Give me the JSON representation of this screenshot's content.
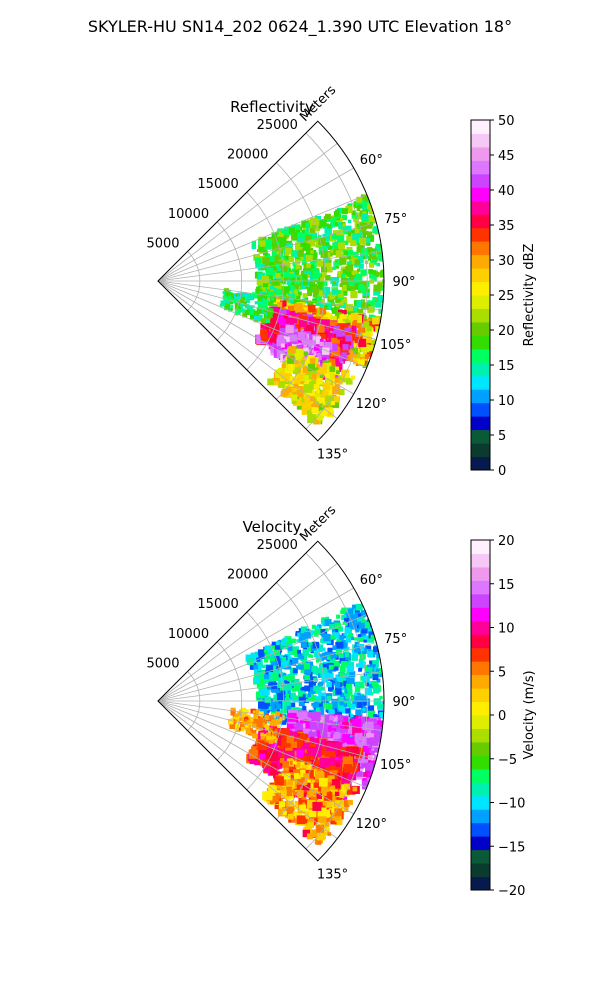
{
  "figure": {
    "title": "SKYLER-HU  SN14_202  0624_1.390 UTC Elevation 18°"
  },
  "chart_data": [
    {
      "type": "heatmap",
      "subtype": "polar-sector radar PPI",
      "title": "Reflectivity",
      "range_label": "Meters",
      "range_ticks": [
        5000,
        10000,
        15000,
        20000,
        25000
      ],
      "range_max": 27000,
      "azimuth_ticks": [
        "60°",
        "75°",
        "90°",
        "105°",
        "120°",
        "135°"
      ],
      "azimuth_range_deg": [
        45,
        135
      ],
      "colorbar": {
        "label": "Reflectivity dBZ",
        "min": 0,
        "max": 50,
        "ticks": [
          0,
          5,
          10,
          15,
          20,
          25,
          30,
          35,
          40,
          45,
          50
        ],
        "colors": [
          "#061a4d",
          "#0b3b2e",
          "#0a5a38",
          "#0000c8",
          "#0050ff",
          "#00a0ff",
          "#00e5ff",
          "#00f0b0",
          "#00ff60",
          "#33dd00",
          "#66cc00",
          "#aadd00",
          "#ddee00",
          "#ffee00",
          "#ffd000",
          "#ffaa00",
          "#ff7700",
          "#ff3300",
          "#ff0044",
          "#ff0099",
          "#ff00ff",
          "#cc44ff",
          "#dd77ff",
          "#ee99ee",
          "#f5c8f5",
          "#fff0ff"
        ]
      }
    },
    {
      "type": "heatmap",
      "subtype": "polar-sector radar PPI",
      "title": "Velocity",
      "range_label": "Meters",
      "range_ticks": [
        5000,
        10000,
        15000,
        20000,
        25000
      ],
      "range_max": 27000,
      "azimuth_ticks": [
        "60°",
        "75°",
        "90°",
        "105°",
        "120°",
        "135°"
      ],
      "azimuth_range_deg": [
        45,
        135
      ],
      "colorbar": {
        "label": "Velocity (m/s)",
        "min": -20,
        "max": 20,
        "ticks": [
          -20,
          -15,
          -10,
          -5,
          0,
          5,
          10,
          15,
          20
        ],
        "colors": [
          "#061a4d",
          "#0b3b2e",
          "#0a5a38",
          "#0000c8",
          "#0050ff",
          "#00a0ff",
          "#00e5ff",
          "#00f0b0",
          "#00ff60",
          "#33dd00",
          "#66cc00",
          "#aadd00",
          "#ddee00",
          "#ffee00",
          "#ffd000",
          "#ffaa00",
          "#ff7700",
          "#ff3300",
          "#ff0044",
          "#ff0099",
          "#ff00ff",
          "#cc44ff",
          "#dd77ff",
          "#ee99ee",
          "#f5c8f5",
          "#fff0ff"
        ]
      }
    }
  ]
}
